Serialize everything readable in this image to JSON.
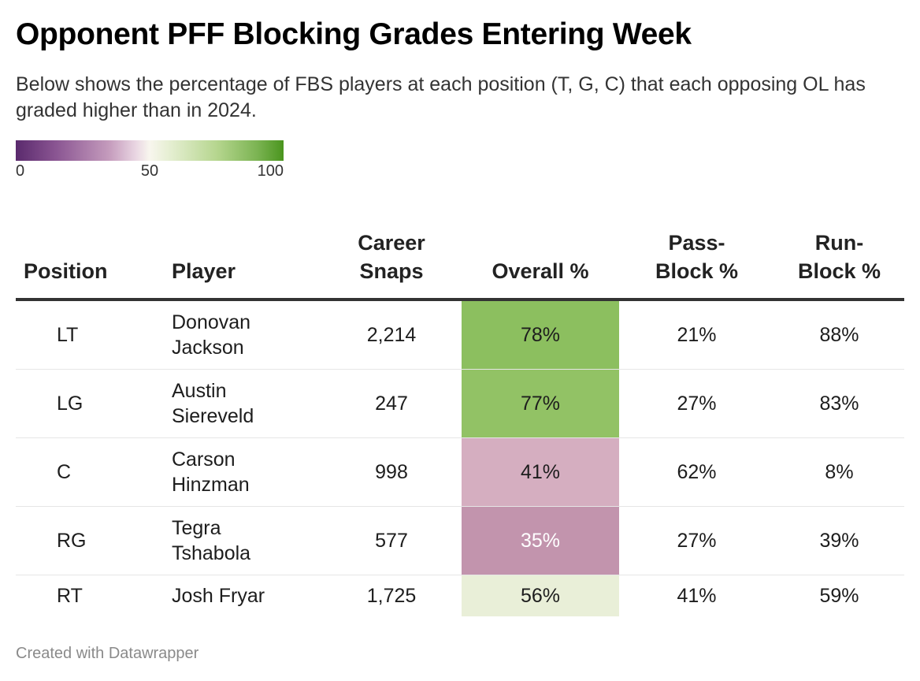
{
  "title": "Opponent PFF Blocking Grades Entering Week",
  "subtitle": "Below shows the percentage of FBS players at each position (T, G, C) that each opposing OL has graded higher than in 2024.",
  "legend": {
    "min": "0",
    "mid": "50",
    "max": "100"
  },
  "colors": {
    "header_rule": "#333333",
    "row_rule": "#e6e6e6",
    "title": "#000000",
    "footer": "#8a8a8a"
  },
  "chart_data": {
    "type": "table",
    "title": "Opponent PFF Blocking Grades Entering Week",
    "columns": [
      "Position",
      "Player",
      "Career Snaps",
      "Overall %",
      "Pass-Block %",
      "Run-Block %"
    ],
    "color_scale": {
      "column": "Overall %",
      "range": [
        0,
        100
      ],
      "low_color": "#5a2a6d",
      "mid_color": "#f8f6ee",
      "high_color": "#4a951e"
    },
    "rows": [
      {
        "position": "LT",
        "player": "Donovan Jackson",
        "snaps": "2,214",
        "overall": "78%",
        "overall_value": 78,
        "overall_bg": "#8cbf5f",
        "overall_fg": "#1d1d1d",
        "pass": "21%",
        "run": "88%"
      },
      {
        "position": "LG",
        "player": "Austin Siereveld",
        "snaps": "247",
        "overall": "77%",
        "overall_value": 77,
        "overall_bg": "#92c265",
        "overall_fg": "#1d1d1d",
        "pass": "27%",
        "run": "83%"
      },
      {
        "position": "C",
        "player": "Carson Hinzman",
        "snaps": "998",
        "overall": "41%",
        "overall_value": 41,
        "overall_bg": "#d5aec0",
        "overall_fg": "#1d1d1d",
        "pass": "62%",
        "run": "8%"
      },
      {
        "position": "RG",
        "player": "Tegra Tshabola",
        "snaps": "577",
        "overall": "35%",
        "overall_value": 35,
        "overall_bg": "#c294ad",
        "overall_fg": "#ffffff",
        "pass": "27%",
        "run": "39%"
      },
      {
        "position": "RT",
        "player": "Josh Fryar",
        "snaps": "1,725",
        "overall": "56%",
        "overall_value": 56,
        "overall_bg": "#e9efd8",
        "overall_fg": "#1d1d1d",
        "pass": "41%",
        "run": "59%"
      }
    ]
  },
  "footer": "Created with Datawrapper"
}
